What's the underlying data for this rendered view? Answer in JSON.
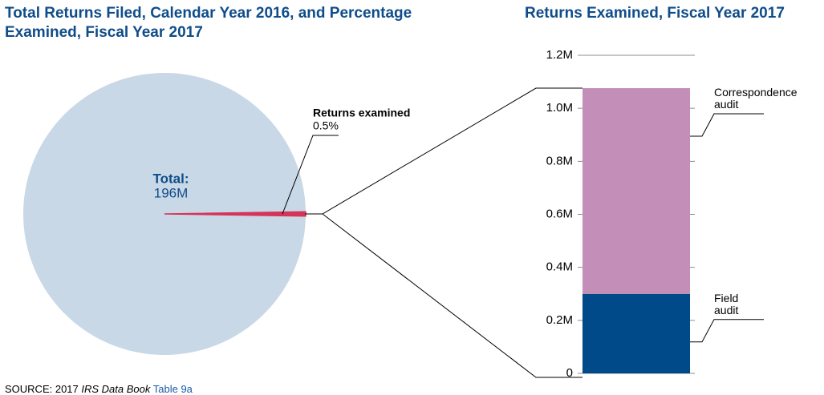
{
  "chart_data": [
    {
      "type": "pie",
      "title": "Total Returns Filed, Calendar Year 2016, and Percentage Examined, Fiscal Year 2017",
      "total": {
        "value": 196000000,
        "label": "196M"
      },
      "total_caption": "Total:",
      "categories": [
        null,
        "Returns examined"
      ],
      "values": [
        99.5,
        0.5
      ],
      "value_labels": [
        null,
        "0.5%"
      ],
      "colors": [
        "#c9d8e6",
        "#d6335a"
      ]
    },
    {
      "type": "stacked-bar",
      "title": "Returns Examined, Fiscal Year 2017",
      "categories": [
        null
      ],
      "series": [
        {
          "name": "Field audit",
          "color": "#004a8a",
          "values": [
            300000
          ]
        },
        {
          "name": "Correspondence audit",
          "color": "#c38fb8",
          "values": [
            776000
          ]
        }
      ],
      "ylim": [
        0,
        1200000
      ],
      "yticks": [
        0,
        {
          "value": 200000,
          "label": "0.2M"
        },
        {
          "value": 400000,
          "label": "0.4M"
        },
        {
          "value": 600000,
          "label": "0.6M"
        },
        {
          "value": 800000,
          "label": "0.8M"
        },
        {
          "value": 1000000,
          "label": "1.0M"
        },
        {
          "value": 1200000,
          "label": "1.2M"
        }
      ]
    }
  ],
  "source": {
    "prefix": "SOURCE: 2017 ",
    "publication": "IRS Data Book",
    "link": "Table 9a"
  }
}
